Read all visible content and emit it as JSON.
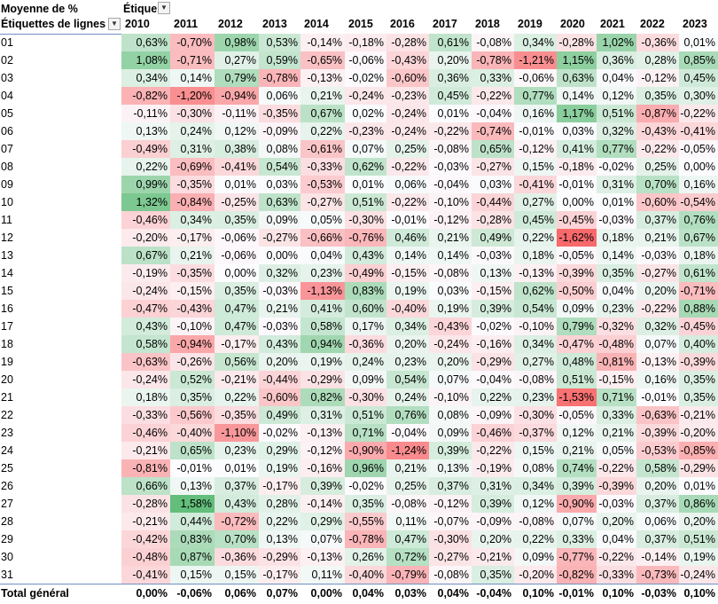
{
  "pivot": {
    "value_field": "Moyenne de %",
    "column_field": "Étiquettes de colonnes",
    "row_field": "Étiquettes de lignes",
    "years": [
      "2010",
      "2011",
      "2012",
      "2013",
      "2014",
      "2015",
      "2016",
      "2017",
      "2018",
      "2019",
      "2020",
      "2021",
      "2022",
      "2023"
    ],
    "rows": [
      {
        "label": "01",
        "values": [
          0.63,
          -0.7,
          0.98,
          0.53,
          -0.14,
          -0.18,
          -0.28,
          0.61,
          -0.08,
          0.34,
          -0.28,
          1.02,
          -0.36,
          0.01
        ]
      },
      {
        "label": "02",
        "values": [
          1.08,
          -0.71,
          0.27,
          0.59,
          -0.65,
          -0.06,
          -0.43,
          0.2,
          -0.78,
          -1.21,
          1.15,
          0.36,
          0.28,
          0.85
        ]
      },
      {
        "label": "03",
        "values": [
          0.34,
          0.14,
          0.79,
          -0.78,
          -0.13,
          -0.02,
          -0.6,
          0.36,
          0.33,
          -0.06,
          0.63,
          0.04,
          -0.12,
          0.45
        ]
      },
      {
        "label": "04",
        "values": [
          -0.82,
          -1.2,
          -0.94,
          0.06,
          0.21,
          -0.24,
          -0.23,
          0.45,
          -0.22,
          0.77,
          0.14,
          0.12,
          0.35,
          0.3
        ]
      },
      {
        "label": "05",
        "values": [
          -0.11,
          -0.3,
          -0.11,
          -0.35,
          0.67,
          0.02,
          -0.24,
          0.01,
          -0.04,
          0.16,
          1.17,
          0.51,
          -0.87,
          -0.22
        ]
      },
      {
        "label": "06",
        "values": [
          0.13,
          0.24,
          0.12,
          -0.09,
          0.22,
          -0.23,
          -0.24,
          -0.22,
          -0.74,
          -0.01,
          0.03,
          0.32,
          -0.43,
          -0.41
        ]
      },
      {
        "label": "07",
        "values": [
          -0.49,
          0.31,
          0.38,
          0.08,
          -0.61,
          0.07,
          0.25,
          -0.08,
          0.65,
          -0.12,
          0.41,
          0.77,
          -0.22,
          -0.05
        ]
      },
      {
        "label": "08",
        "values": [
          0.22,
          -0.69,
          -0.41,
          0.54,
          -0.33,
          0.62,
          -0.22,
          -0.03,
          -0.27,
          0.15,
          -0.18,
          -0.02,
          0.25,
          0.0
        ]
      },
      {
        "label": "09",
        "values": [
          0.99,
          -0.35,
          0.01,
          0.03,
          -0.53,
          0.01,
          0.06,
          -0.04,
          0.03,
          -0.41,
          -0.01,
          0.31,
          0.7,
          0.16
        ]
      },
      {
        "label": "10",
        "values": [
          1.32,
          -0.84,
          -0.25,
          0.63,
          -0.27,
          0.51,
          -0.22,
          -0.1,
          -0.44,
          0.27,
          0.0,
          0.01,
          -0.6,
          -0.54
        ]
      },
      {
        "label": "11",
        "values": [
          -0.46,
          0.34,
          0.35,
          0.09,
          0.05,
          -0.3,
          -0.01,
          -0.12,
          -0.28,
          0.45,
          -0.45,
          -0.03,
          0.37,
          0.76
        ]
      },
      {
        "label": "12",
        "values": [
          -0.2,
          -0.17,
          -0.06,
          -0.27,
          -0.66,
          -0.76,
          0.46,
          0.21,
          0.49,
          0.22,
          -1.62,
          0.18,
          0.21,
          0.67
        ]
      },
      {
        "label": "13",
        "values": [
          0.67,
          0.21,
          -0.06,
          0.0,
          0.04,
          0.43,
          0.14,
          0.14,
          -0.03,
          0.18,
          -0.05,
          0.14,
          -0.03,
          0.18
        ]
      },
      {
        "label": "14",
        "values": [
          -0.19,
          -0.35,
          0.0,
          0.32,
          0.23,
          -0.49,
          -0.15,
          -0.08,
          0.13,
          -0.13,
          -0.39,
          0.35,
          -0.27,
          0.61
        ]
      },
      {
        "label": "15",
        "values": [
          -0.24,
          -0.15,
          0.35,
          -0.03,
          -1.13,
          0.83,
          0.19,
          0.03,
          -0.15,
          0.62,
          -0.5,
          0.04,
          0.2,
          -0.71
        ]
      },
      {
        "label": "16",
        "values": [
          -0.47,
          -0.43,
          0.47,
          0.21,
          0.41,
          0.6,
          -0.4,
          0.19,
          0.39,
          0.54,
          0.09,
          0.23,
          -0.22,
          0.88
        ]
      },
      {
        "label": "17",
        "values": [
          0.43,
          -0.1,
          0.47,
          -0.03,
          0.58,
          0.17,
          0.34,
          -0.43,
          -0.02,
          -0.1,
          0.79,
          -0.32,
          0.32,
          -0.45
        ]
      },
      {
        "label": "18",
        "values": [
          0.58,
          -0.94,
          -0.17,
          0.43,
          0.94,
          -0.36,
          0.2,
          -0.24,
          -0.16,
          0.34,
          -0.47,
          -0.48,
          0.07,
          0.4
        ]
      },
      {
        "label": "19",
        "values": [
          -0.63,
          -0.26,
          0.56,
          0.2,
          0.19,
          0.24,
          0.23,
          0.2,
          -0.29,
          0.27,
          0.48,
          -0.81,
          -0.13,
          -0.39
        ]
      },
      {
        "label": "20",
        "values": [
          -0.24,
          0.52,
          -0.21,
          -0.44,
          -0.29,
          0.09,
          0.54,
          0.07,
          -0.04,
          -0.08,
          0.51,
          -0.15,
          0.16,
          0.35
        ]
      },
      {
        "label": "21",
        "values": [
          0.18,
          0.35,
          0.22,
          -0.6,
          0.82,
          -0.3,
          0.24,
          -0.1,
          0.22,
          0.23,
          -1.53,
          0.71,
          -0.01,
          0.35
        ]
      },
      {
        "label": "22",
        "values": [
          -0.33,
          -0.56,
          -0.35,
          0.49,
          0.31,
          0.51,
          0.76,
          0.08,
          -0.09,
          -0.3,
          -0.05,
          0.33,
          -0.63,
          -0.21
        ]
      },
      {
        "label": "23",
        "values": [
          -0.46,
          -0.4,
          -1.1,
          -0.02,
          -0.13,
          0.71,
          -0.04,
          0.09,
          -0.46,
          -0.37,
          0.12,
          0.21,
          -0.39,
          -0.2
        ]
      },
      {
        "label": "24",
        "values": [
          -0.21,
          0.65,
          0.23,
          0.29,
          -0.12,
          -0.9,
          -1.24,
          0.39,
          -0.22,
          0.15,
          0.21,
          0.05,
          -0.53,
          -0.85
        ]
      },
      {
        "label": "25",
        "values": [
          -0.81,
          -0.01,
          0.01,
          0.19,
          -0.16,
          0.96,
          0.21,
          0.13,
          -0.19,
          0.08,
          0.74,
          -0.22,
          0.58,
          -0.29
        ]
      },
      {
        "label": "26",
        "values": [
          0.66,
          0.13,
          0.37,
          -0.17,
          0.39,
          -0.02,
          0.25,
          0.37,
          0.31,
          0.34,
          0.39,
          -0.39,
          0.2,
          0.01
        ]
      },
      {
        "label": "27",
        "values": [
          -0.28,
          1.58,
          0.43,
          0.28,
          -0.14,
          0.35,
          -0.08,
          -0.12,
          0.39,
          0.12,
          -0.9,
          -0.03,
          0.37,
          0.86
        ]
      },
      {
        "label": "28",
        "values": [
          -0.21,
          0.44,
          -0.72,
          0.22,
          0.29,
          -0.55,
          0.11,
          -0.07,
          -0.09,
          -0.08,
          0.07,
          0.2,
          0.06,
          0.2
        ]
      },
      {
        "label": "29",
        "values": [
          -0.42,
          0.83,
          0.7,
          0.13,
          0.07,
          -0.78,
          0.47,
          -0.3,
          0.2,
          0.22,
          0.33,
          0.04,
          0.37,
          0.51
        ]
      },
      {
        "label": "30",
        "values": [
          -0.48,
          0.87,
          -0.36,
          -0.29,
          -0.13,
          0.26,
          0.72,
          -0.27,
          -0.21,
          0.09,
          -0.77,
          -0.22,
          -0.14,
          0.19
        ]
      },
      {
        "label": "31",
        "values": [
          -0.41,
          0.15,
          0.15,
          -0.17,
          0.11,
          -0.4,
          -0.79,
          -0.08,
          0.35,
          -0.2,
          -0.82,
          -0.33,
          -0.73,
          -0.24
        ]
      }
    ],
    "total": {
      "label": "Total général",
      "values": [
        0.0,
        -0.06,
        0.06,
        0.07,
        0.0,
        0.04,
        0.03,
        0.04,
        -0.04,
        0.1,
        -0.01,
        0.1,
        -0.03,
        0.1
      ]
    },
    "scale_colors": {
      "negative": "#f8696b",
      "neutral": "#fcfcff",
      "positive": "#63be7b"
    }
  }
}
